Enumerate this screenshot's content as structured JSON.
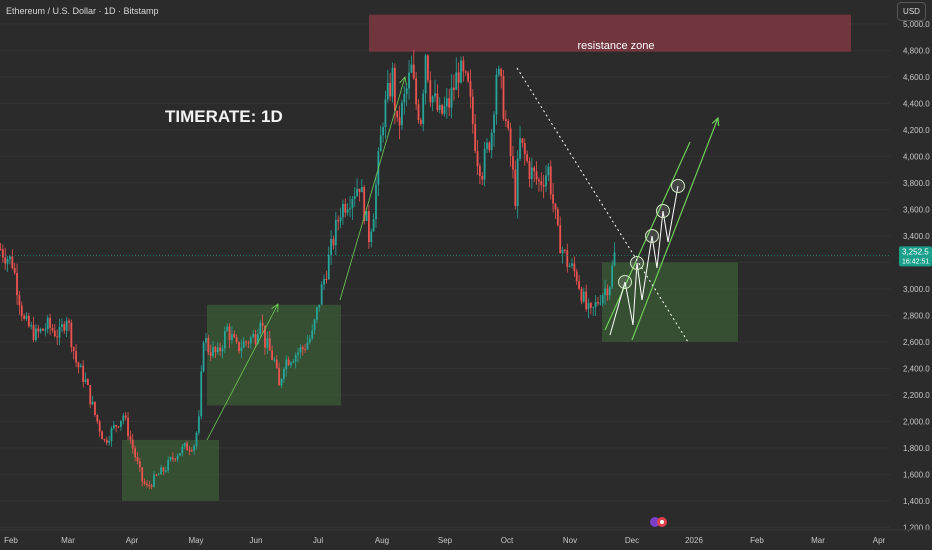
{
  "header": {
    "symbol_title": "Ethereum / U.S. Dollar · 1D · Bitstamp",
    "currency": "USD"
  },
  "annotations": {
    "timerate": "TIMERATE: 1D",
    "resistance_label": "resistance zone"
  },
  "price_tag": {
    "price": "3,252.5",
    "countdown": "16:42:51",
    "color": "#1aa08a"
  },
  "colors": {
    "background": "#2b2b2b",
    "up_candle": "#26a69a",
    "down_candle": "#ef5350",
    "resistance_zone": "#8a3a44",
    "consolidation_box": "#3f6b36",
    "arrow": "#6ecf57",
    "white_arrow": "#ffffff",
    "grid": "#333333"
  },
  "chart_data": {
    "type": "candlestick",
    "title": "Ethereum / U.S. Dollar · 1D · Bitstamp",
    "ylim": [
      1180,
      5120
    ],
    "y_ticks": [
      "5,000.0",
      "4,800.0",
      "4,600.0",
      "4,400.0",
      "4,200.0",
      "4,000.0",
      "3,800.0",
      "3,600.0",
      "3,400.0",
      "3,200.0",
      "3,000.0",
      "2,800.0",
      "2,600.0",
      "2,400.0",
      "2,200.0",
      "2,000.0",
      "1,800.0",
      "1,600.0",
      "1,400.0",
      "1,200.0"
    ],
    "x_ticks": [
      "Feb",
      "Mar",
      "Apr",
      "May",
      "Jun",
      "Jul",
      "Aug",
      "Sep",
      "Oct",
      "Nov",
      "Dec",
      "2026",
      "Feb",
      "Mar",
      "Apr"
    ],
    "current_price": 3252.5,
    "price_path": [
      [
        0,
        3300
      ],
      [
        5,
        3200
      ],
      [
        10,
        2750
      ],
      [
        15,
        2650
      ],
      [
        20,
        2720
      ],
      [
        25,
        2650
      ],
      [
        28,
        2800
      ],
      [
        32,
        2450
      ],
      [
        36,
        2300
      ],
      [
        40,
        2050
      ],
      [
        44,
        1850
      ],
      [
        48,
        1950
      ],
      [
        52,
        2050
      ],
      [
        56,
        1800
      ],
      [
        60,
        1550
      ],
      [
        62,
        1500
      ],
      [
        66,
        1580
      ],
      [
        70,
        1650
      ],
      [
        74,
        1750
      ],
      [
        78,
        1800
      ],
      [
        82,
        1830
      ],
      [
        84,
        2000
      ],
      [
        86,
        2650
      ],
      [
        88,
        2550
      ],
      [
        92,
        2500
      ],
      [
        96,
        2700
      ],
      [
        100,
        2550
      ],
      [
        104,
        2600
      ],
      [
        108,
        2650
      ],
      [
        110,
        2800
      ],
      [
        112,
        2600
      ],
      [
        116,
        2450
      ],
      [
        118,
        2250
      ],
      [
        120,
        2450
      ],
      [
        124,
        2500
      ],
      [
        128,
        2550
      ],
      [
        132,
        2650
      ],
      [
        136,
        3000
      ],
      [
        140,
        3300
      ],
      [
        144,
        3600
      ],
      [
        148,
        3700
      ],
      [
        152,
        3800
      ],
      [
        154,
        3600
      ],
      [
        156,
        3400
      ],
      [
        158,
        3600
      ],
      [
        162,
        4300
      ],
      [
        166,
        4600
      ],
      [
        168,
        4200
      ],
      [
        172,
        4500
      ],
      [
        174,
        4650
      ],
      [
        176,
        4400
      ],
      [
        178,
        4300
      ],
      [
        180,
        4800
      ],
      [
        182,
        4500
      ],
      [
        186,
        4300
      ],
      [
        190,
        4400
      ],
      [
        194,
        4650
      ],
      [
        198,
        4500
      ],
      [
        202,
        4000
      ],
      [
        204,
        3900
      ],
      [
        208,
        4200
      ],
      [
        210,
        4650
      ],
      [
        212,
        4500
      ],
      [
        216,
        4000
      ],
      [
        218,
        3700
      ],
      [
        220,
        4100
      ],
      [
        224,
        3900
      ],
      [
        228,
        3800
      ],
      [
        232,
        3900
      ],
      [
        236,
        3400
      ],
      [
        240,
        3200
      ],
      [
        244,
        3100
      ],
      [
        248,
        2850
      ],
      [
        250,
        2800
      ],
      [
        254,
        2950
      ],
      [
        258,
        3050
      ],
      [
        260,
        3252
      ]
    ],
    "zones": {
      "resistance_zone": {
        "price_range": [
          4790,
          5070
        ],
        "label": "resistance zone"
      },
      "support_boxes": [
        {
          "price_range": [
            1400,
            1860
          ]
        },
        {
          "price_range": [
            2120,
            2880
          ]
        },
        {
          "price_range": [
            2600,
            3200
          ]
        }
      ]
    }
  }
}
